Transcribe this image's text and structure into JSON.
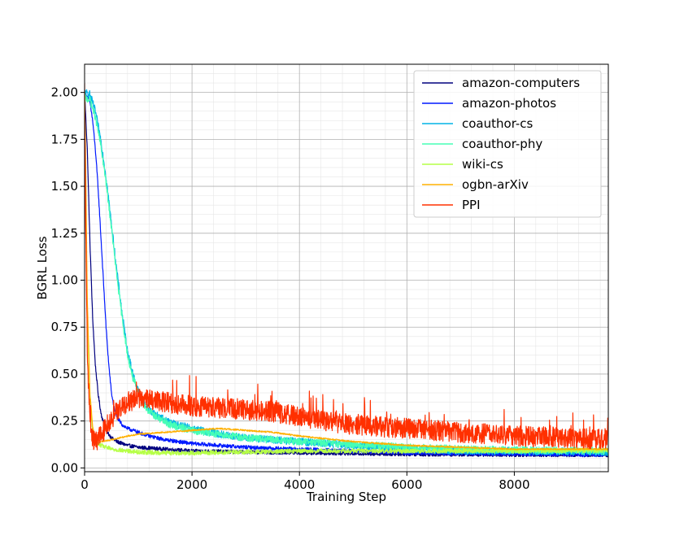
{
  "chart_data": {
    "type": "line",
    "title": "",
    "xlabel": "Training Step",
    "ylabel": "BGRL Loss",
    "xlim": [
      0,
      9750
    ],
    "ylim": [
      -0.02,
      2.15
    ],
    "xticks": [
      0,
      2000,
      4000,
      6000,
      8000
    ],
    "xtick_labels": [
      "0",
      "2000",
      "4000",
      "6000",
      "8000"
    ],
    "yticks": [
      0.0,
      0.25,
      0.5,
      0.75,
      1.0,
      1.25,
      1.5,
      1.75,
      2.0
    ],
    "ytick_labels": [
      "0.00",
      "0.25",
      "0.50",
      "0.75",
      "1.00",
      "1.25",
      "1.50",
      "1.75",
      "2.00"
    ],
    "grid": true,
    "legend_position": "top-right",
    "series": [
      {
        "name": "amazon-computers",
        "color": "#00007f",
        "noise": 0.01,
        "x": [
          0,
          50,
          100,
          150,
          200,
          250,
          300,
          350,
          400,
          500,
          600,
          800,
          1000,
          1500,
          2000,
          3000,
          4000,
          5000,
          6000,
          8000,
          9750
        ],
        "values": [
          2.0,
          1.7,
          1.2,
          0.8,
          0.55,
          0.4,
          0.3,
          0.24,
          0.2,
          0.16,
          0.14,
          0.12,
          0.11,
          0.1,
          0.09,
          0.085,
          0.08,
          0.077,
          0.073,
          0.07,
          0.068
        ]
      },
      {
        "name": "amazon-photos",
        "color": "#0019ff",
        "noise": 0.01,
        "x": [
          0,
          100,
          150,
          200,
          250,
          300,
          350,
          400,
          450,
          500,
          550,
          600,
          700,
          800,
          1000,
          1200,
          1500,
          2000,
          3000,
          4000,
          5000,
          6000,
          8000,
          9750
        ],
        "values": [
          2.0,
          1.95,
          1.85,
          1.7,
          1.5,
          1.25,
          1.0,
          0.75,
          0.55,
          0.4,
          0.32,
          0.27,
          0.23,
          0.21,
          0.19,
          0.17,
          0.15,
          0.13,
          0.11,
          0.1,
          0.09,
          0.08,
          0.075,
          0.07
        ]
      },
      {
        "name": "coauthor-cs",
        "color": "#00b3e6",
        "noise": 0.02,
        "x": [
          0,
          100,
          200,
          300,
          400,
          500,
          600,
          700,
          800,
          900,
          1000,
          1100,
          1200,
          1400,
          1600,
          2000,
          2500,
          3000,
          4000,
          5000,
          6000,
          7000,
          8000,
          9750
        ],
        "values": [
          2.0,
          1.99,
          1.9,
          1.75,
          1.55,
          1.3,
          1.05,
          0.82,
          0.62,
          0.5,
          0.41,
          0.35,
          0.31,
          0.27,
          0.24,
          0.21,
          0.18,
          0.16,
          0.14,
          0.12,
          0.1,
          0.09,
          0.09,
          0.085
        ]
      },
      {
        "name": "coauthor-phy",
        "color": "#46ffb6",
        "noise": 0.02,
        "x": [
          0,
          100,
          200,
          300,
          400,
          500,
          600,
          700,
          800,
          900,
          1000,
          1100,
          1200,
          1400,
          1600,
          2000,
          2500,
          3000,
          4000,
          5000,
          6000,
          7000,
          8000,
          9750
        ],
        "values": [
          1.97,
          1.96,
          1.87,
          1.72,
          1.52,
          1.28,
          1.02,
          0.8,
          0.6,
          0.48,
          0.4,
          0.34,
          0.3,
          0.26,
          0.23,
          0.2,
          0.18,
          0.16,
          0.14,
          0.125,
          0.11,
          0.1,
          0.095,
          0.09
        ]
      },
      {
        "name": "wiki-cs",
        "color": "#b6ff46",
        "noise": 0.012,
        "x": [
          0,
          20,
          50,
          100,
          150,
          200,
          300,
          500,
          800,
          1000,
          1500,
          2000,
          3000,
          4000,
          6000,
          8000,
          9750
        ],
        "values": [
          2.0,
          1.5,
          0.8,
          0.35,
          0.2,
          0.14,
          0.12,
          0.1,
          0.09,
          0.085,
          0.08,
          0.08,
          0.085,
          0.09,
          0.09,
          0.09,
          0.095
        ]
      },
      {
        "name": "ogbn-arXiv",
        "color": "#ffb000",
        "noise": 0.004,
        "x": [
          0,
          20,
          50,
          100,
          150,
          200,
          300,
          500,
          800,
          1000,
          1500,
          2000,
          2500,
          3000,
          3500,
          4000,
          5000,
          6000,
          8000,
          9750
        ],
        "values": [
          2.0,
          1.6,
          0.9,
          0.4,
          0.22,
          0.16,
          0.14,
          0.15,
          0.17,
          0.18,
          0.19,
          0.2,
          0.21,
          0.2,
          0.19,
          0.17,
          0.14,
          0.12,
          0.1,
          0.1
        ]
      },
      {
        "name": "PPI",
        "color": "#ff3000",
        "noise": 0.055,
        "x": [
          0,
          20,
          50,
          100,
          150,
          200,
          300,
          400,
          600,
          800,
          1000,
          1500,
          2000,
          2500,
          3000,
          3500,
          4000,
          5000,
          6000,
          7000,
          8000,
          9000,
          9750
        ],
        "values": [
          2.0,
          1.3,
          0.6,
          0.25,
          0.15,
          0.14,
          0.17,
          0.22,
          0.3,
          0.35,
          0.37,
          0.35,
          0.33,
          0.32,
          0.31,
          0.3,
          0.27,
          0.23,
          0.21,
          0.19,
          0.17,
          0.16,
          0.155
        ]
      }
    ]
  }
}
